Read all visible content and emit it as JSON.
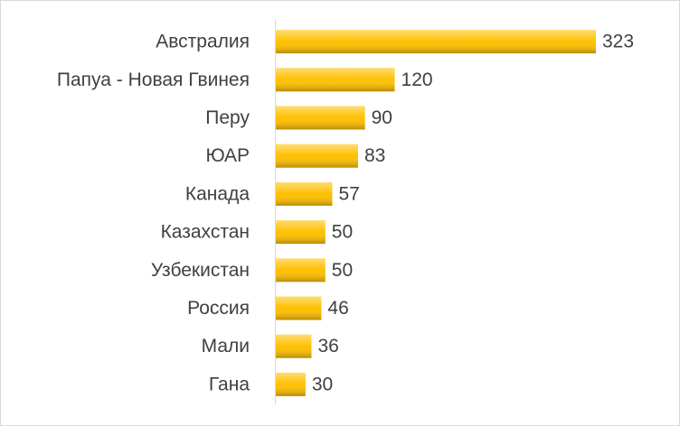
{
  "chart_data": {
    "type": "bar",
    "orientation": "horizontal",
    "categories": [
      "Австралия",
      "Папуа - Новая Гвинея",
      "Перу",
      "ЮАР",
      "Канада",
      "Казахстан",
      "Узбекистан",
      "Россия",
      "Мали",
      "Гана"
    ],
    "values": [
      323,
      120,
      90,
      83,
      57,
      50,
      50,
      46,
      36,
      30
    ],
    "color": "#ffc000",
    "data_labels": true
  }
}
